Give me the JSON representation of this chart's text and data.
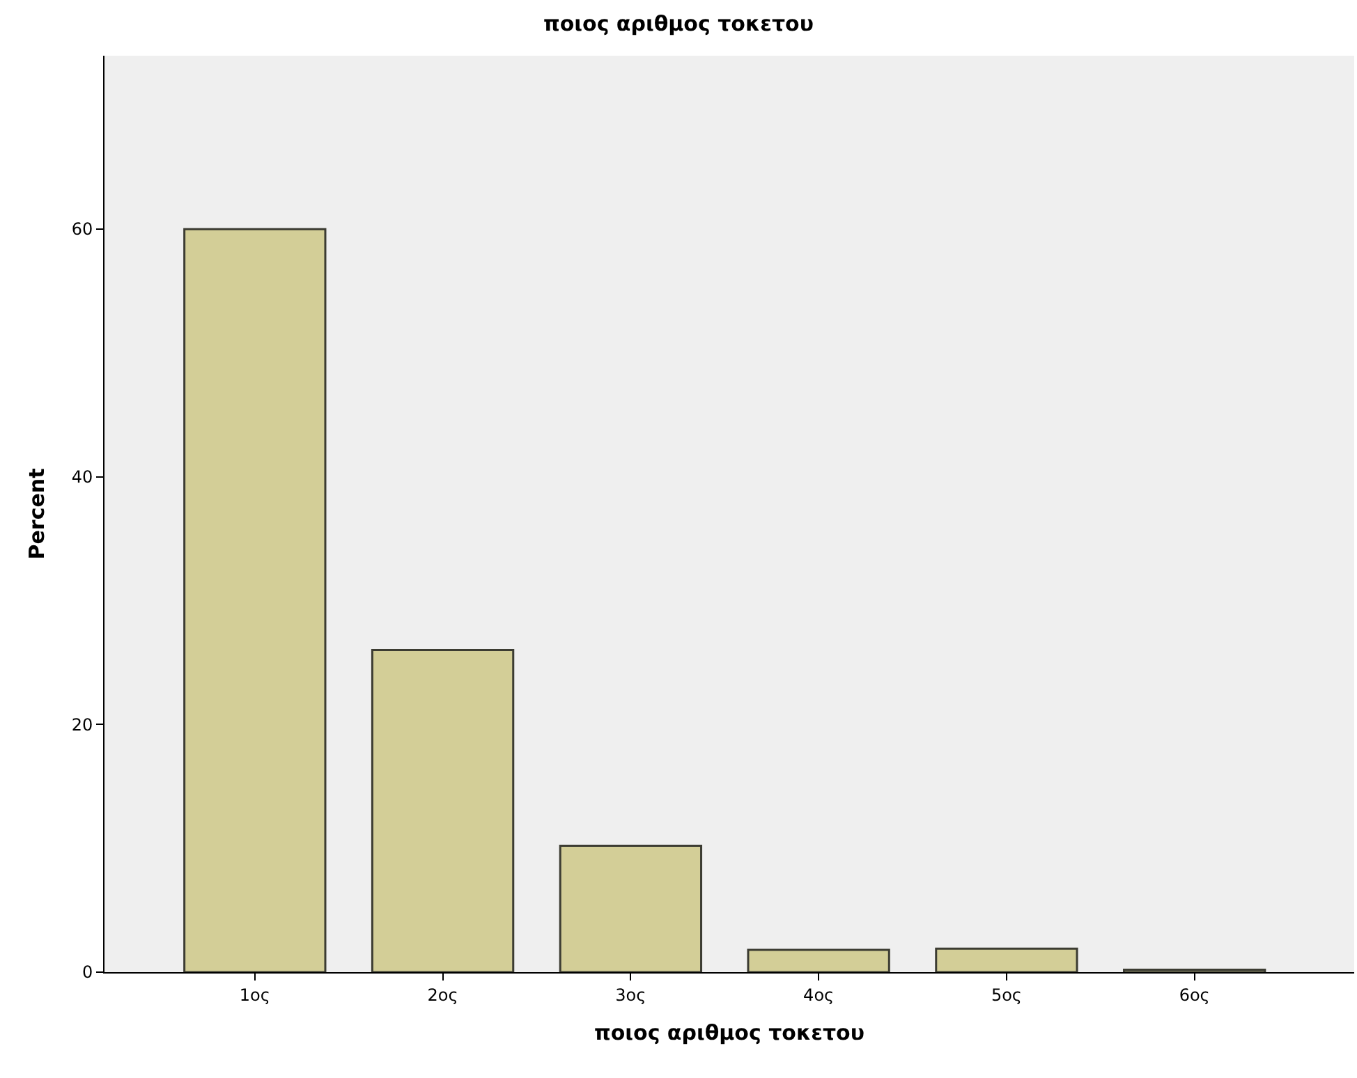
{
  "chart_data": {
    "type": "bar",
    "title": "ποιος αριθμος τοκετου",
    "xlabel": "ποιος αριθμος τοκετου",
    "ylabel": "Percent",
    "categories": [
      "1ος",
      "2ος",
      "3ος",
      "4ος",
      "5ος",
      "6ος"
    ],
    "values": [
      60.0,
      26.0,
      10.2,
      1.8,
      1.9,
      0.2
    ],
    "color": "#d3ce97",
    "ylim": [
      0,
      74
    ],
    "yticks": [
      0,
      20,
      40,
      60
    ],
    "grid": false
  }
}
